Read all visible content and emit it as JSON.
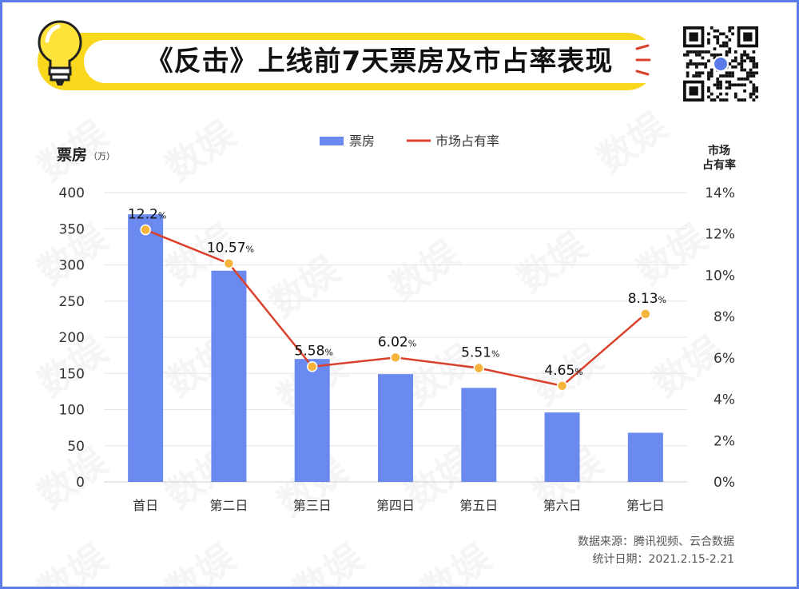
{
  "header": {
    "title": "《反击》上线前7天票房及市占率表现"
  },
  "watermark": "数娱",
  "legend": {
    "bar_label": "票房",
    "line_label": "市场占有率"
  },
  "axis": {
    "left_title": "票房",
    "left_unit": "（万）",
    "right_title_line1": "市场",
    "right_title_line2": "占有率"
  },
  "source": {
    "line1": "数据来源：腾讯视频、云合数据",
    "line2": "统计日期：2021.2.15-2.21"
  },
  "colors": {
    "bar": "#6b8af0",
    "line": "#d9412b",
    "point": "#f6b43c",
    "banner": "#f9d71c",
    "frame": "#5c7be8"
  },
  "chart_data": {
    "type": "bar",
    "categories": [
      "首日",
      "第二日",
      "第三日",
      "第四日",
      "第五日",
      "第六日",
      "第七日"
    ],
    "series": [
      {
        "name": "票房",
        "type": "bar",
        "axis": "left",
        "values": [
          370,
          292,
          170,
          149,
          130,
          96,
          68
        ]
      },
      {
        "name": "市场占有率",
        "type": "line",
        "axis": "right",
        "values": [
          12.2,
          10.57,
          5.58,
          6.02,
          5.51,
          4.65,
          8.13
        ],
        "labels": [
          "12.2",
          "10.57",
          "5.58",
          "6.02",
          "5.51",
          "4.65",
          "8.13"
        ]
      }
    ],
    "ylim": [
      0,
      400
    ],
    "yticks": [
      "0",
      "50",
      "100",
      "150",
      "200",
      "250",
      "300",
      "350",
      "400"
    ],
    "y2lim": [
      0,
      14
    ],
    "y2ticks": [
      "0%",
      "2%",
      "4%",
      "6%",
      "8%",
      "10%",
      "12%",
      "14%"
    ],
    "grid": true,
    "legend_position": "top-center"
  }
}
